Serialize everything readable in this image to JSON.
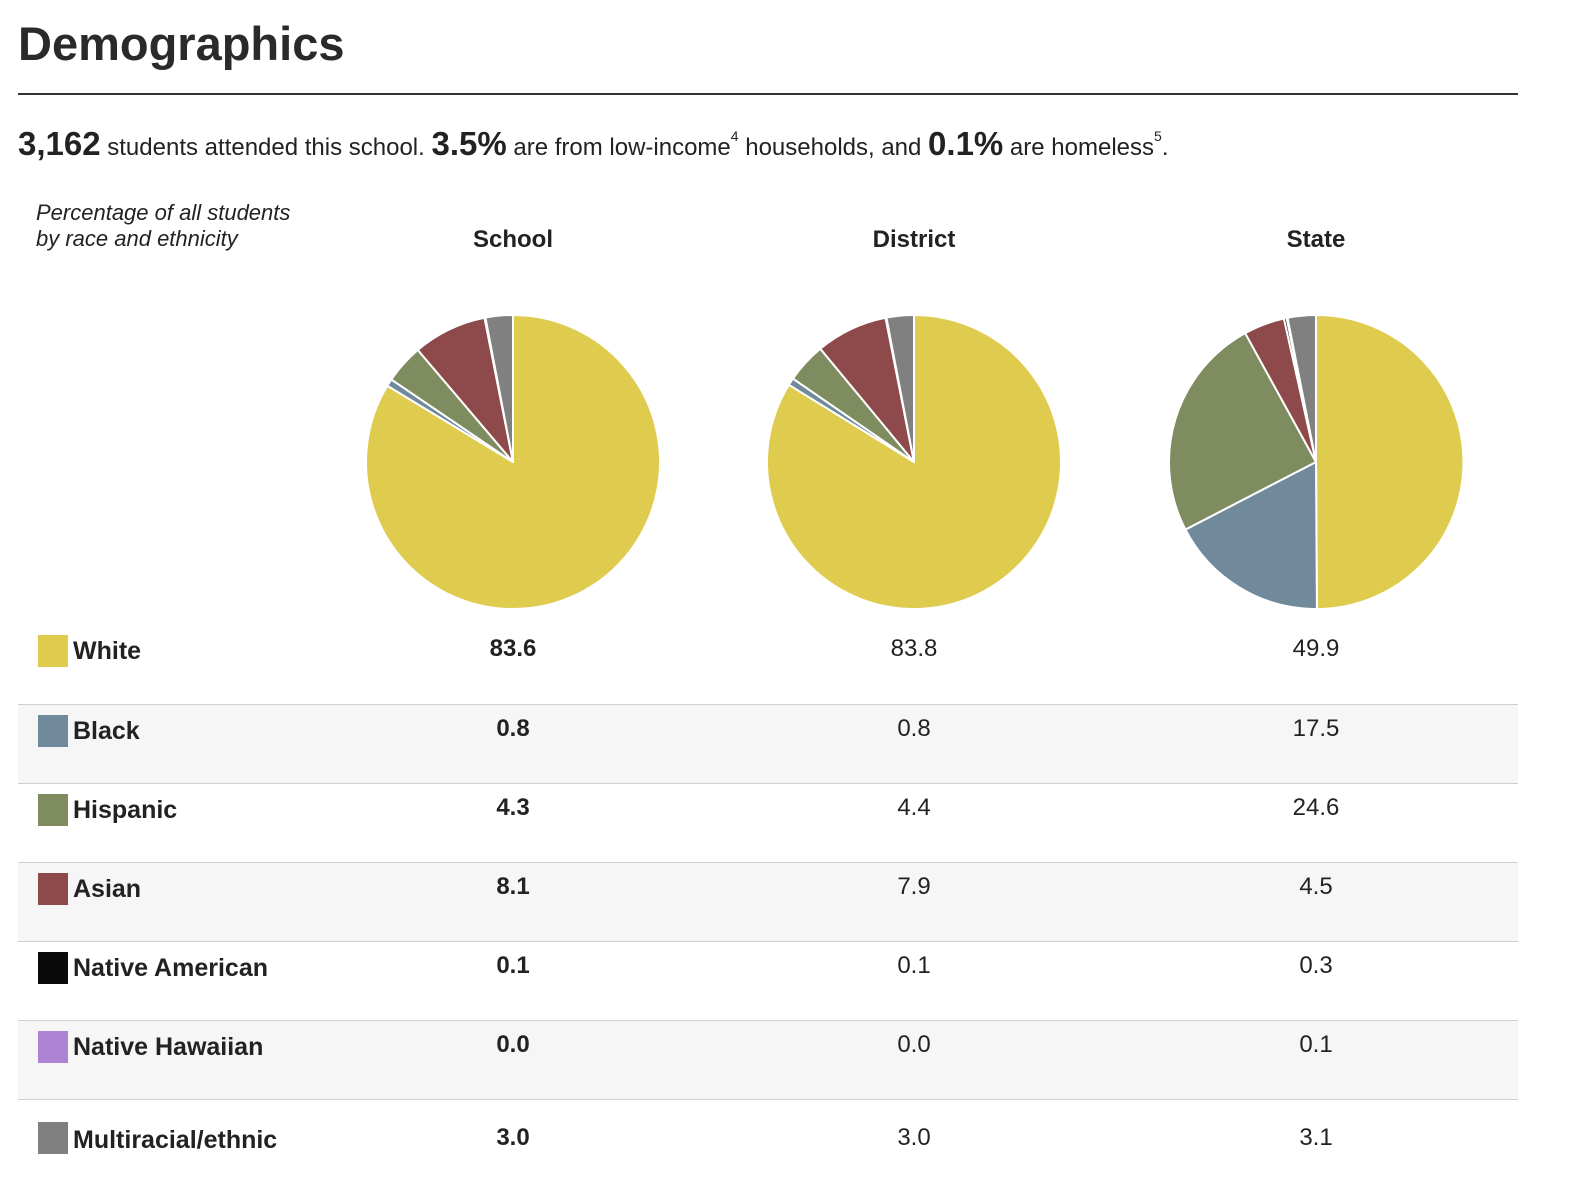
{
  "page": {
    "title": "Demographics"
  },
  "summary": {
    "students": "3,162",
    "students_text": " students attended this school. ",
    "low_income": "3.5%",
    "low_income_text": " are from low-income",
    "low_income_note": "4",
    "homeless_lead": " households, and ",
    "homeless": "0.1%",
    "homeless_text": " are homeless",
    "homeless_note": "5",
    "end": "."
  },
  "chart_caption": "Percentage of all students by race and ethnicity",
  "chart_data": {
    "type": "pie",
    "columns": [
      "School",
      "District",
      "State"
    ],
    "categories": [
      "White",
      "Black",
      "Hispanic",
      "Asian",
      "Native American",
      "Native Hawaiian",
      "Multiracial/ethnic"
    ],
    "colors": [
      "#dfcb4e",
      "#708a9c",
      "#7f8c5f",
      "#8e4a4a",
      "#0a0a0a",
      "#ae83d4",
      "#808080"
    ],
    "series": [
      {
        "name": "School",
        "values": [
          83.6,
          0.8,
          4.3,
          8.1,
          0.1,
          0.0,
          3.0
        ]
      },
      {
        "name": "District",
        "values": [
          83.8,
          0.8,
          4.4,
          7.9,
          0.1,
          0.0,
          3.0
        ]
      },
      {
        "name": "State",
        "values": [
          49.9,
          17.5,
          24.6,
          4.5,
          0.3,
          0.1,
          3.1
        ]
      }
    ]
  },
  "table": {
    "rows": [
      {
        "label": "White",
        "school": "83.6",
        "district": "83.8",
        "state": "49.9"
      },
      {
        "label": "Black",
        "school": "0.8",
        "district": "0.8",
        "state": "17.5"
      },
      {
        "label": "Hispanic",
        "school": "4.3",
        "district": "4.4",
        "state": "24.6"
      },
      {
        "label": "Asian",
        "school": "8.1",
        "district": "7.9",
        "state": "4.5"
      },
      {
        "label": "Native American",
        "school": "0.1",
        "district": "0.1",
        "state": "0.3"
      },
      {
        "label": "Native Hawaiian",
        "school": "0.0",
        "district": "0.0",
        "state": "0.1"
      },
      {
        "label": "Multiracial/ethnic",
        "school": "3.0",
        "district": "3.0",
        "state": "3.1"
      }
    ]
  }
}
